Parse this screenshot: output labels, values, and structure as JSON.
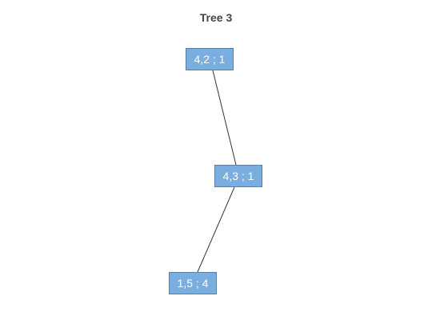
{
  "title": "Tree 3",
  "colors": {
    "node_fill": "#7aaee0",
    "node_border": "#5a7ea3",
    "node_text": "#ffffff",
    "edge": "#333333",
    "title": "#444444"
  },
  "nodes": [
    {
      "id": "n1",
      "label": "4,2 ; 1"
    },
    {
      "id": "n2",
      "label": "4,3 ; 1"
    },
    {
      "id": "n3",
      "label": "1,5 ; 4"
    }
  ],
  "edges": [
    {
      "from": "n1",
      "to": "n2"
    },
    {
      "from": "n2",
      "to": "n3"
    }
  ]
}
